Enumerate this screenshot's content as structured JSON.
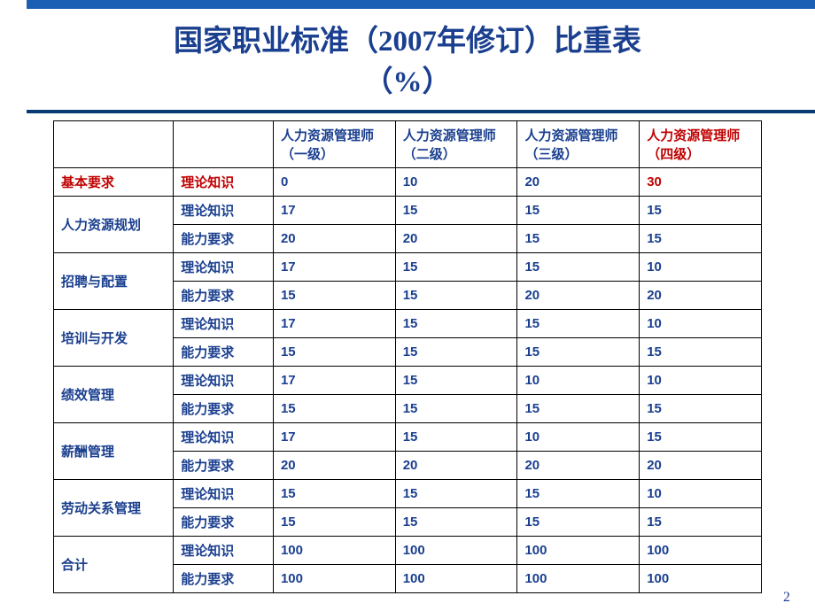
{
  "title": {
    "line1": "国家职业标准（2007年修订）比重表",
    "line2": "（%）"
  },
  "columns": {
    "empty1": "",
    "empty2": "",
    "c1": "人力资源管理师（一级）",
    "c2": "人力资源管理师（二级）",
    "c3": "人力资源管理师（三级）",
    "c4": "人力资源管理师（四级）"
  },
  "labels": {
    "basic": "基本要求",
    "theory": "理论知识",
    "ability": "能力要求",
    "planning": "人力资源规划",
    "recruit": "招聘与配置",
    "training": "培训与开发",
    "perf": "绩效管理",
    "comp": "薪酬管理",
    "labor": "劳动关系管理",
    "total": "合计"
  },
  "rows": {
    "basic_theory": [
      "0",
      "10",
      "20",
      "30"
    ],
    "planning_theory": [
      "17",
      "15",
      "15",
      "15"
    ],
    "planning_ability": [
      "20",
      "20",
      "15",
      "15"
    ],
    "recruit_theory": [
      "17",
      "15",
      "15",
      "10"
    ],
    "recruit_ability": [
      "15",
      "15",
      "20",
      "20"
    ],
    "training_theory": [
      "17",
      "15",
      "15",
      "10"
    ],
    "training_ability": [
      "15",
      "15",
      "15",
      "15"
    ],
    "perf_theory": [
      "17",
      "15",
      "10",
      "10"
    ],
    "perf_ability": [
      "15",
      "15",
      "15",
      "15"
    ],
    "comp_theory": [
      "17",
      "15",
      "10",
      "15"
    ],
    "comp_ability": [
      "20",
      "20",
      "20",
      "20"
    ],
    "labor_theory": [
      "15",
      "15",
      "15",
      "10"
    ],
    "labor_ability": [
      "15",
      "15",
      "15",
      "15"
    ],
    "total_theory": [
      "100",
      "100",
      "100",
      "100"
    ],
    "total_ability": [
      "100",
      "100",
      "100",
      "100"
    ]
  },
  "page_number": "2",
  "colors": {
    "text_primary": "#1a3f8f",
    "text_highlight": "#c00000",
    "border": "#000000",
    "header_gradient_dark": "#033b82",
    "header_gradient_light": "#0a3d7a",
    "background": "#ffffff"
  }
}
